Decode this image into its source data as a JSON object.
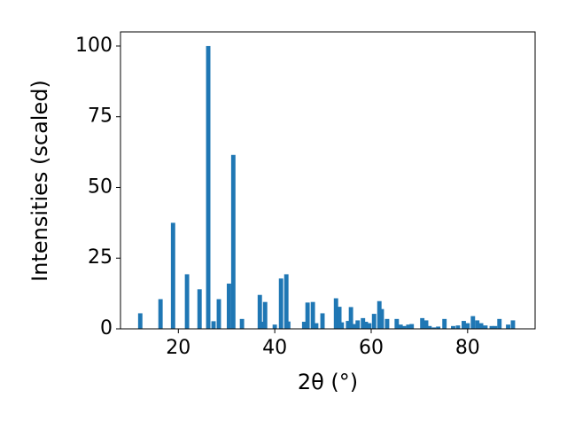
{
  "chart_data": {
    "type": "bar",
    "xlabel": "2θ (°)",
    "ylabel": "Intensities (scaled)",
    "x": [
      12.1,
      16.3,
      18.9,
      21.8,
      24.4,
      26.2,
      27.3,
      28.4,
      30.5,
      31.4,
      33.2,
      36.9,
      37.4,
      38.0,
      40.0,
      41.3,
      42.4,
      42.8,
      46.1,
      46.8,
      47.9,
      48.6,
      49.9,
      52.7,
      53.4,
      53.9,
      55.2,
      55.8,
      56.5,
      57.2,
      58.3,
      58.9,
      59.6,
      60.6,
      61.7,
      62.2,
      63.3,
      65.3,
      66.1,
      66.8,
      67.7,
      68.4,
      70.6,
      71.4,
      72.1,
      73.0,
      73.9,
      75.2,
      77.0,
      78.0,
      79.2,
      80.0,
      81.1,
      82.0,
      82.8,
      83.7,
      85.0,
      85.7,
      86.6,
      88.4,
      89.4
    ],
    "values": [
      5.5,
      10.5,
      37.5,
      19.3,
      14,
      100,
      2.7,
      10.5,
      16,
      61.5,
      3.5,
      12,
      2.5,
      9.5,
      1.5,
      17.8,
      19.3,
      2.6,
      2.5,
      9.3,
      9.5,
      2,
      5.5,
      10.8,
      7.8,
      2.3,
      2.8,
      7.7,
      1.7,
      3,
      3.8,
      2.5,
      2,
      5.3,
      9.8,
      7,
      3.5,
      3.5,
      1.5,
      1,
      1.5,
      1.7,
      3.8,
      3,
      1,
      0.5,
      0.8,
      3.5,
      1,
      1.2,
      2.8,
      2,
      4.5,
      3,
      2,
      1.2,
      1,
      1,
      3.5,
      1.5,
      3
    ],
    "color": "#1f77b4",
    "xlim": [
      8,
      94
    ],
    "ylim": [
      0,
      105
    ],
    "xticks": [
      20,
      40,
      60,
      80
    ],
    "yticks": [
      0,
      25,
      50,
      75,
      100
    ],
    "grid": false
  }
}
